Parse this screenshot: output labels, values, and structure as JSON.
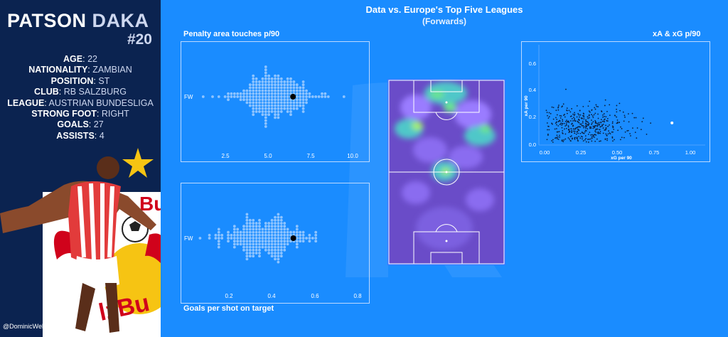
{
  "player": {
    "first_name": "PATSON",
    "last_name": "DAKA",
    "number": "#20",
    "facts": [
      {
        "label": "AGE",
        "value": "22"
      },
      {
        "label": "NATIONALITY",
        "value": "ZAMBIAN"
      },
      {
        "label": "POSITION",
        "value": "ST"
      },
      {
        "label": "CLUB",
        "value": "RB SALZBURG"
      },
      {
        "label": "LEAGUE",
        "value": "AUSTRIAN BUNDESLIGA"
      },
      {
        "label": "STRONG FOOT",
        "value": "RIGHT"
      },
      {
        "label": "GOALS",
        "value": "27"
      },
      {
        "label": "ASSISTS",
        "value": "4"
      }
    ],
    "credit": "@DominicWells_SJ"
  },
  "header": {
    "title": "Data vs. Europe's Top Five Leagues",
    "subtitle": "(Forwards)"
  },
  "colors": {
    "sidebar": "#0b2350",
    "background": "#1a8cff",
    "dots": "#8ec4ff",
    "highlight": "#000000"
  },
  "chart_data": [
    {
      "type": "scatter",
      "title": "Penalty area touches p/90",
      "category_label": "FW",
      "xticks": [
        "2.5",
        "5.0",
        "7.5",
        "10.0"
      ],
      "xlim": [
        0.5,
        11
      ],
      "highlight": 6.5
    },
    {
      "type": "scatter",
      "title": "Goals per shot on target",
      "category_label": "FW",
      "xticks": [
        "0.2",
        "0.4",
        "0.6",
        "0.8"
      ],
      "xlim": [
        0.05,
        0.85
      ],
      "highlight": 0.52
    },
    {
      "type": "heatmap",
      "title": ""
    },
    {
      "type": "scatter",
      "title": "xA & xG p/90",
      "xlabel": "xG per 90",
      "ylabel": "xA per 90",
      "xticks": [
        "0.00",
        "0.25",
        "0.50",
        "0.75",
        "1.00"
      ],
      "yticks": [
        "0.0",
        "0.2",
        "0.4",
        "0.6"
      ],
      "xlim": [
        -0.05,
        1.1
      ],
      "ylim": [
        -0.02,
        0.75
      ],
      "highlight": {
        "x": 0.87,
        "y": 0.15
      }
    }
  ]
}
